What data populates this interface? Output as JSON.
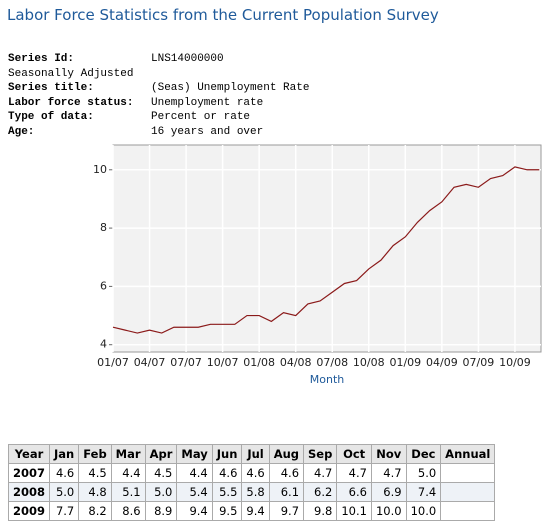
{
  "header": {
    "title": "Labor Force Statistics from the Current Population Survey"
  },
  "metadata": [
    {
      "label": "Series Id:",
      "value": "LNS14000000"
    },
    {
      "label": "Seasonally Adjusted"
    },
    {
      "label": "Series title:",
      "value": "(Seas) Unemployment Rate"
    },
    {
      "label": "Labor force status:",
      "value": "Unemployment rate"
    },
    {
      "label": "Type of data:",
      "value": "Percent or rate"
    },
    {
      "label": "Age:",
      "value": "16 years and over"
    }
  ],
  "chart_data": {
    "type": "line",
    "xlabel": "Month",
    "categories": [
      "01/07",
      null,
      null,
      "04/07",
      null,
      null,
      "07/07",
      null,
      null,
      "10/07",
      null,
      null,
      "01/08",
      null,
      null,
      "04/08",
      null,
      null,
      "07/08",
      null,
      null,
      "10/08",
      null,
      null,
      "01/09",
      null,
      null,
      "04/09",
      null,
      null,
      "07/09",
      null,
      null,
      "10/09",
      null,
      null
    ],
    "series": [
      {
        "color": "#8b1a1a",
        "values": [
          4.6,
          4.5,
          4.4,
          4.5,
          4.4,
          4.6,
          4.6,
          4.6,
          4.7,
          4.7,
          4.7,
          5.0,
          5.0,
          4.8,
          5.1,
          5.0,
          5.4,
          5.5,
          5.8,
          6.1,
          6.2,
          6.6,
          6.9,
          7.4,
          7.7,
          8.2,
          8.6,
          8.9,
          9.4,
          9.5,
          9.4,
          9.7,
          9.8,
          10.1,
          10.0,
          10.0
        ]
      }
    ],
    "ylim": [
      3.75,
      10.85
    ],
    "yticks": [
      4,
      6,
      8,
      10
    ],
    "grid": true
  },
  "table": {
    "header": [
      "Year",
      "Jan",
      "Feb",
      "Mar",
      "Apr",
      "May",
      "Jun",
      "Jul",
      "Aug",
      "Sep",
      "Oct",
      "Nov",
      "Dec",
      "Annual"
    ],
    "rows": [
      {
        "year": 2007,
        "values": [
          "4.6",
          "4.5",
          "4.4",
          "4.5",
          "4.4",
          "4.6",
          "4.6",
          "4.6",
          "4.7",
          "4.7",
          "4.7",
          "5.0"
        ]
      },
      {
        "year": 2008,
        "values": [
          "5.0",
          "4.8",
          "5.1",
          "5.0",
          "5.4",
          "5.5",
          "5.8",
          "6.1",
          "6.2",
          "6.6",
          "6.9",
          "7.4"
        ]
      },
      {
        "year": 2009,
        "values": [
          "7.7",
          "8.2",
          "8.6",
          "8.9",
          "9.4",
          "9.5",
          "9.4",
          "9.7",
          "9.8",
          "10.1",
          "10.0",
          "10.0"
        ]
      }
    ]
  }
}
